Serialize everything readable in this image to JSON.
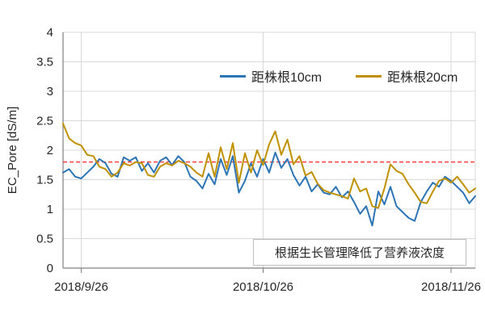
{
  "chart_data": {
    "type": "line",
    "title": "",
    "xlabel": "",
    "ylabel": "EC_Pore [dS/m]",
    "ylim": [
      0,
      4
    ],
    "ytick_labels": [
      "0",
      "0.5",
      "1",
      "1.5",
      "2",
      "2.5",
      "3",
      "3.5",
      "4"
    ],
    "x_tick_labels": [
      "2018/9/26",
      "2018/10/26",
      "2018/11/26"
    ],
    "x_tick_index": [
      3,
      33,
      64
    ],
    "n_points": 69,
    "grid": true,
    "legend_position": "top-inside",
    "series": [
      {
        "name": "距株根10cm",
        "color": "#2E75B6",
        "values": [
          1.62,
          1.68,
          1.55,
          1.52,
          1.62,
          1.72,
          1.85,
          1.78,
          1.6,
          1.55,
          1.88,
          1.82,
          1.88,
          1.65,
          1.78,
          1.62,
          1.82,
          1.88,
          1.75,
          1.9,
          1.8,
          1.55,
          1.48,
          1.35,
          1.6,
          1.42,
          1.85,
          1.58,
          1.9,
          1.28,
          1.48,
          1.78,
          1.55,
          1.85,
          1.62,
          1.96,
          1.7,
          1.85,
          1.58,
          1.4,
          1.55,
          1.3,
          1.42,
          1.28,
          1.25,
          1.38,
          1.2,
          1.3,
          1.12,
          0.92,
          1.05,
          0.72,
          1.3,
          1.08,
          1.38,
          1.05,
          0.95,
          0.85,
          0.8,
          1.12,
          1.3,
          1.45,
          1.38,
          1.55,
          1.48,
          1.38,
          1.28,
          1.1,
          1.22
        ]
      },
      {
        "name": "距株根20cm",
        "color": "#BF9000",
        "values": [
          2.45,
          2.2,
          2.12,
          2.08,
          1.92,
          1.9,
          1.72,
          1.68,
          1.55,
          1.62,
          1.78,
          1.74,
          1.8,
          1.78,
          1.58,
          1.55,
          1.72,
          1.78,
          1.74,
          1.82,
          1.78,
          1.72,
          1.62,
          1.55,
          1.95,
          1.55,
          2.05,
          1.68,
          2.12,
          1.45,
          1.95,
          1.62,
          2.0,
          1.75,
          2.1,
          2.32,
          1.92,
          2.18,
          1.76,
          1.9,
          1.57,
          1.63,
          1.43,
          1.32,
          1.28,
          1.25,
          1.22,
          1.18,
          1.52,
          1.3,
          1.35,
          1.05,
          1.02,
          1.35,
          1.76,
          1.65,
          1.6,
          1.42,
          1.28,
          1.12,
          1.1,
          1.3,
          1.48,
          1.52,
          1.45,
          1.55,
          1.42,
          1.28,
          1.35
        ]
      }
    ],
    "reference_line": {
      "value": 1.8,
      "color": "#FF2A2A",
      "style": "dashed"
    },
    "annotation": "根据生长管理降低了营养液浓度"
  },
  "colors": {
    "grid": "#D9D9D9",
    "axis": "#808080",
    "text": "#262626"
  }
}
